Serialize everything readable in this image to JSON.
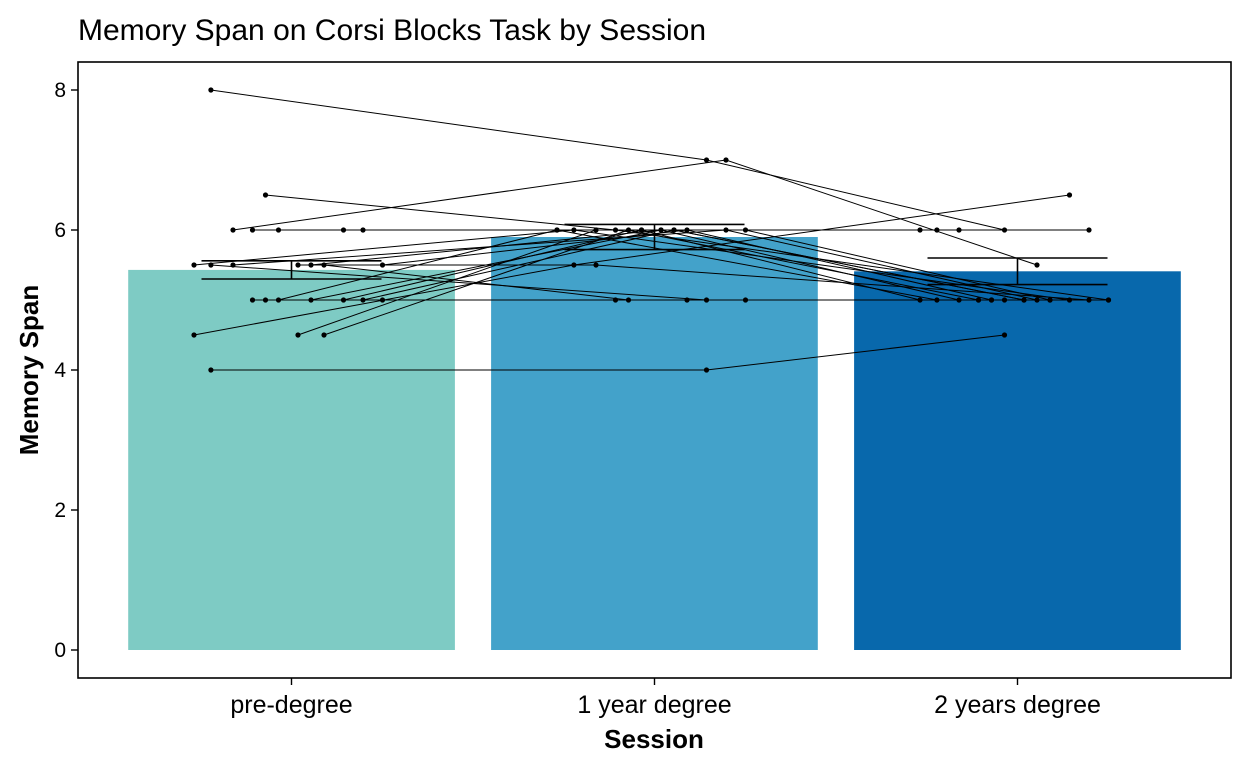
{
  "chart_data": {
    "type": "bar",
    "title": "Memory Span on Corsi Blocks Task by Session",
    "xlabel": "Session",
    "ylabel": "Memory Span",
    "categories": [
      "pre-degree",
      "1 year degree",
      "2 years degree"
    ],
    "values": [
      5.43,
      5.9,
      5.41
    ],
    "error_bars": [
      {
        "low": 5.3,
        "high": 5.56
      },
      {
        "low": 5.72,
        "high": 6.08
      },
      {
        "low": 5.22,
        "high": 5.6
      }
    ],
    "colors": [
      "#7ecbc4",
      "#43a2ca",
      "#0868ac"
    ],
    "ylim": [
      -0.4,
      8.4
    ],
    "yticks": [
      0,
      2,
      4,
      6,
      8
    ],
    "grid": false,
    "legend": "none",
    "participants": [
      {
        "values": [
          8,
          7,
          6
        ]
      },
      {
        "values": [
          6,
          7,
          5.5
        ]
      },
      {
        "values": [
          6.5,
          6,
          5
        ]
      },
      {
        "values": [
          6,
          6,
          6
        ]
      },
      {
        "values": [
          6,
          6,
          5
        ]
      },
      {
        "values": [
          6,
          6,
          5
        ]
      },
      {
        "values": [
          6,
          6,
          6
        ]
      },
      {
        "values": [
          5.5,
          6,
          6
        ]
      },
      {
        "values": [
          5.5,
          6,
          5
        ]
      },
      {
        "values": [
          5.5,
          6,
          5
        ]
      },
      {
        "values": [
          5.5,
          5.5,
          5
        ]
      },
      {
        "values": [
          5.5,
          5,
          5
        ]
      },
      {
        "values": [
          5.5,
          5,
          5
        ]
      },
      {
        "values": [
          5.5,
          6,
          5
        ]
      },
      {
        "values": [
          5,
          5,
          5
        ]
      },
      {
        "values": [
          5,
          6,
          5
        ]
      },
      {
        "values": [
          5,
          6,
          5
        ]
      },
      {
        "values": [
          5,
          5,
          5
        ]
      },
      {
        "values": [
          5,
          6,
          5
        ]
      },
      {
        "values": [
          5,
          6,
          5
        ]
      },
      {
        "values": [
          5,
          5,
          5
        ]
      },
      {
        "values": [
          4.5,
          5.5,
          6.5
        ]
      },
      {
        "values": [
          4.5,
          6,
          6
        ]
      },
      {
        "values": [
          4.5,
          6,
          5
        ]
      },
      {
        "values": [
          4,
          4,
          4.5
        ]
      }
    ]
  }
}
